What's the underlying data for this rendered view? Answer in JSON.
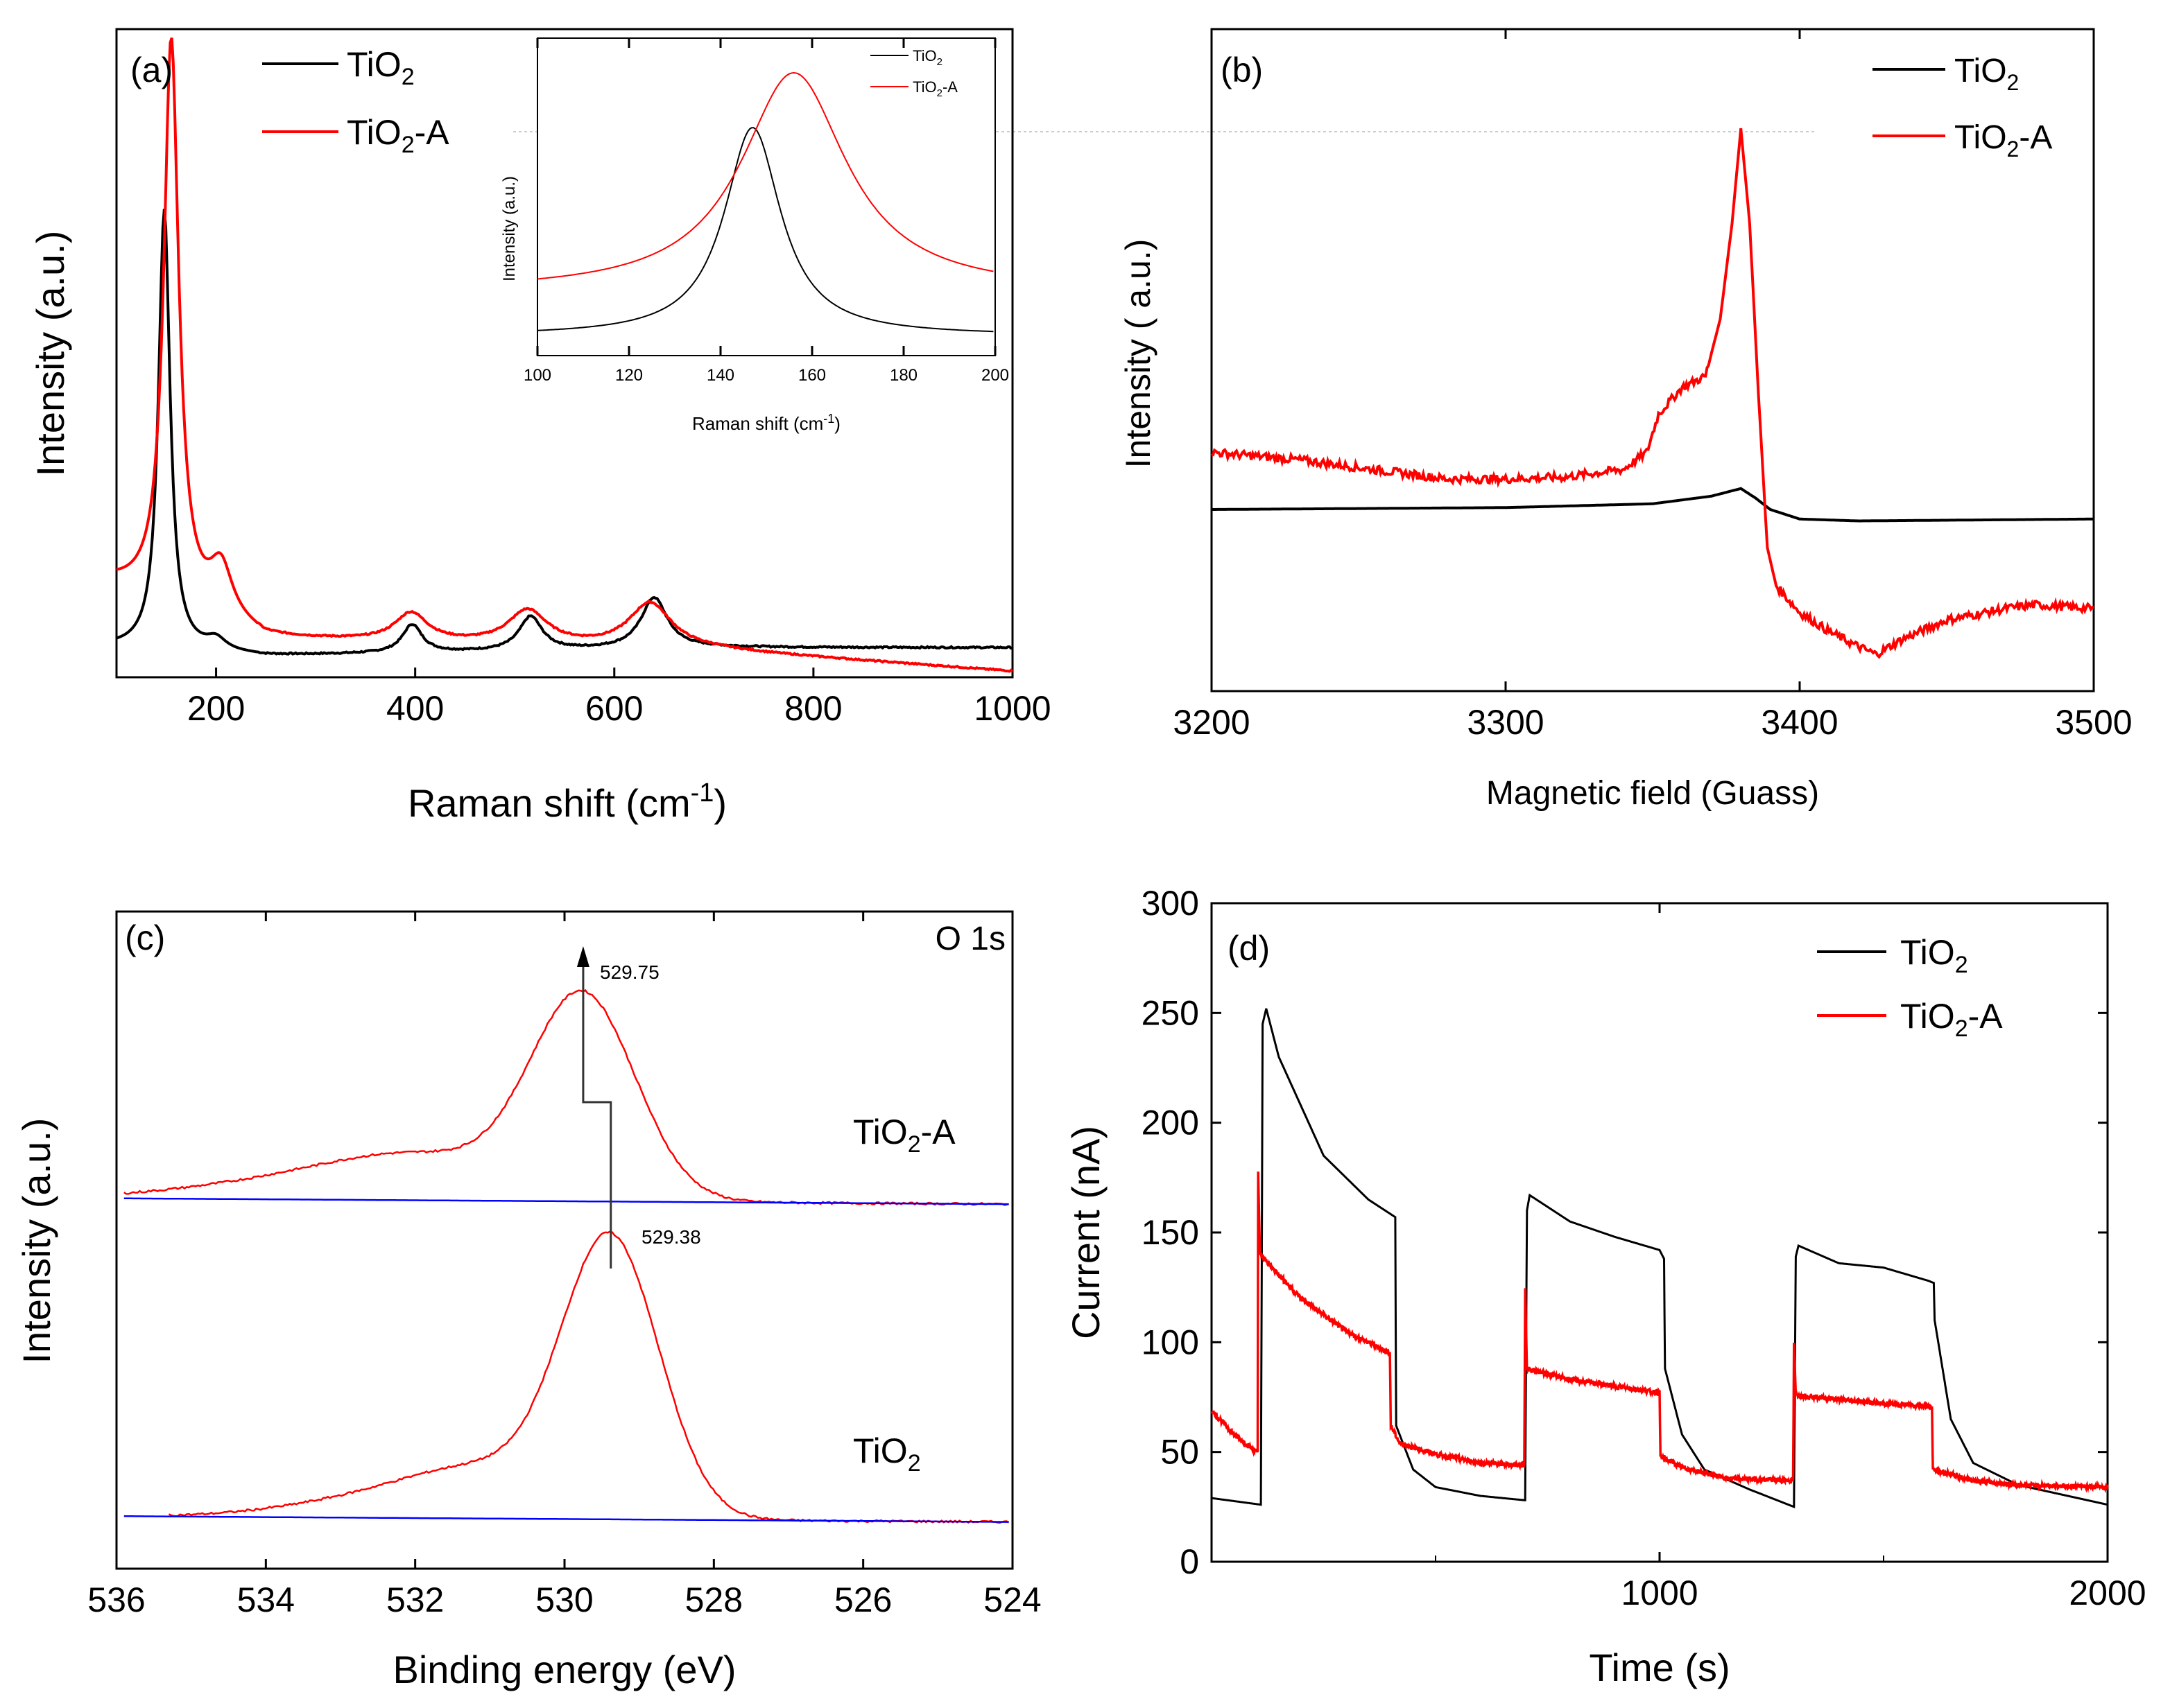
{
  "figure": "Four-panel characterization of TiO2 and TiO2-A",
  "colors": {
    "tio2": "#000000",
    "tio2a": "#ff0000",
    "baseline": "#0000ff",
    "axis": "#000000"
  },
  "chart_data": [
    {
      "panel": "(a)",
      "type": "line",
      "xlabel_main": "Raman shift (cm",
      "xlabel_sup": "-1",
      "xlabel_end": ")",
      "ylabel": "Intensity (a.u.)",
      "xlim": [
        100,
        1000
      ],
      "ylim": [
        0,
        100
      ],
      "xticks": [
        200,
        400,
        600,
        800,
        1000
      ],
      "xtick_labels": [
        "200",
        "400",
        "600",
        "800",
        "1000"
      ],
      "legend": [
        {
          "base": "TiO",
          "sub": "2",
          "tail": ""
        },
        {
          "base": "TiO",
          "sub": "2",
          "tail": "-A"
        }
      ],
      "series": [
        {
          "name": "TiO2",
          "color": "#000000",
          "peaks": [
            [
              148,
              78,
              7
            ],
            [
              200,
              2,
              12
            ],
            [
              397,
              5,
              12
            ],
            [
              516,
              6,
              14
            ],
            [
              640,
              9,
              16
            ]
          ],
          "base": [
            [
              100,
              5
            ],
            [
              250,
              3.5
            ],
            [
              700,
              5
            ],
            [
              1000,
              5
            ]
          ]
        },
        {
          "name": "TiO2-A",
          "color": "#ff0000",
          "peaks": [
            [
              155,
              100,
              9
            ],
            [
              205,
              9,
              14
            ],
            [
              396,
              5,
              20
            ],
            [
              513,
              6,
              24
            ],
            [
              636,
              8,
              26
            ]
          ],
          "base": [
            [
              100,
              16
            ],
            [
              250,
              6.5
            ],
            [
              700,
              4.5
            ],
            [
              1000,
              0.8
            ]
          ]
        }
      ],
      "inset": {
        "xlabel_main": "Raman shift (cm",
        "xlabel_sup": "-1",
        "xlabel_end": ")",
        "ylabel": "Intensity (a.u.)",
        "xlim": [
          100,
          200
        ],
        "xticks": [
          100,
          120,
          140,
          160,
          180,
          200
        ],
        "xtick_labels": [
          "100",
          "120",
          "140",
          "160",
          "180",
          "200"
        ],
        "legend": [
          {
            "base": "TiO",
            "sub": "2",
            "tail": ""
          },
          {
            "base": "TiO",
            "sub": "2",
            "tail": "-A"
          }
        ],
        "series": [
          {
            "name": "TiO2",
            "color": "#000000",
            "center": 147,
            "hwhm": 7.5,
            "peak": 100,
            "floor": 5
          },
          {
            "name": "TiO2-A",
            "color": "#ff0000",
            "center": 156,
            "hwhm": 14,
            "peak": 125,
            "floor": 25
          }
        ]
      }
    },
    {
      "panel": "(b)",
      "type": "line",
      "xlabel": "Magnetic field (Guass)",
      "ylabel": "Intensity ( a.u.)",
      "xlim": [
        3200,
        3500
      ],
      "ylim": [
        -50,
        110
      ],
      "xticks": [
        3200,
        3300,
        3400,
        3500
      ],
      "xtick_labels": [
        "3200",
        "3300",
        "3400",
        "3500"
      ],
      "legend": [
        {
          "base": "TiO",
          "sub": "2",
          "tail": ""
        },
        {
          "base": "TiO",
          "sub": "2",
          "tail": "-A"
        }
      ],
      "series": [
        {
          "name": "TiO2",
          "color": "#000000",
          "points": [
            [
              3200,
              0
            ],
            [
              3300,
              0.5
            ],
            [
              3350,
              1.5
            ],
            [
              3370,
              3.5
            ],
            [
              3380,
              5.5
            ],
            [
              3385,
              3
            ],
            [
              3390,
              0
            ],
            [
              3400,
              -2.5
            ],
            [
              3420,
              -3
            ],
            [
              3500,
              -2.5
            ]
          ]
        },
        {
          "name": "TiO2-A",
          "color": "#ff0000",
          "points": [
            [
              3200,
              15
            ],
            [
              3230,
              13
            ],
            [
              3260,
              10
            ],
            [
              3280,
              8
            ],
            [
              3300,
              8
            ],
            [
              3320,
              8.5
            ],
            [
              3340,
              10.5
            ],
            [
              3348,
              15
            ],
            [
              3352,
              25
            ],
            [
              3360,
              32
            ],
            [
              3368,
              35
            ],
            [
              3373,
              50
            ],
            [
              3377,
              75
            ],
            [
              3380,
              100
            ],
            [
              3383,
              75
            ],
            [
              3386,
              30
            ],
            [
              3389,
              -10
            ],
            [
              3392,
              -20
            ],
            [
              3400,
              -27
            ],
            [
              3410,
              -32
            ],
            [
              3420,
              -36
            ],
            [
              3426,
              -38
            ],
            [
              3435,
              -34
            ],
            [
              3450,
              -29
            ],
            [
              3470,
              -26
            ],
            [
              3480,
              -25
            ],
            [
              3500,
              -26
            ]
          ]
        }
      ]
    },
    {
      "panel": "(c)",
      "type": "line",
      "xlabel": "Binding energy (eV)",
      "ylabel": "Intensity (a.u.)",
      "title": "O 1s",
      "xlim": [
        536,
        524
      ],
      "ylim": [
        0,
        100
      ],
      "xticks": [
        536,
        534,
        532,
        530,
        528,
        526,
        524
      ],
      "xtick_labels": [
        "536",
        "534",
        "532",
        "530",
        "528",
        "526",
        "524"
      ],
      "labels": [
        {
          "base": "TiO",
          "sub": "2",
          "tail": "-A"
        },
        {
          "base": "TiO",
          "sub": "2",
          "tail": ""
        }
      ],
      "annotations": [
        "529.75",
        "529.38"
      ],
      "peak_positions": [
        529.75,
        529.38
      ],
      "series": [
        {
          "name": "TiO2-A",
          "color": "#ff0000",
          "offset": 54.3,
          "center": 529.75,
          "height": 33,
          "sigma": 0.7,
          "shoulder": [
            531.8,
            6,
            1.2
          ],
          "tail": [
            533.5,
            3,
            1.5
          ]
        },
        {
          "name": "TiO2-A baseline",
          "color": "#0000ff",
          "offset": 54.3
        },
        {
          "name": "TiO2",
          "color": "#ff0000",
          "offset": 2.2,
          "center": 529.38,
          "height": 45,
          "sigma": 0.65,
          "shoulder": [
            531.0,
            7,
            1.0
          ],
          "tail": [
            532.5,
            3,
            1.2
          ]
        },
        {
          "name": "TiO2 baseline",
          "color": "#0000ff",
          "offset": 2.2
        }
      ]
    },
    {
      "panel": "(d)",
      "type": "line",
      "xlabel": "Time (s)",
      "ylabel": "Current (nA)",
      "xlim": [
        0,
        2000
      ],
      "ylim": [
        0,
        300
      ],
      "yticks": [
        0,
        50,
        100,
        150,
        200,
        250,
        300
      ],
      "ytick_labels": [
        "0",
        "50",
        "100",
        "150",
        "200",
        "250",
        "300"
      ],
      "xticks": [
        1000,
        2000
      ],
      "xtick_labels": [
        "1000",
        "2000"
      ],
      "legend": [
        {
          "base": "TiO",
          "sub": "2",
          "tail": ""
        },
        {
          "base": "TiO",
          "sub": "2",
          "tail": "-A"
        }
      ],
      "series": [
        {
          "name": "TiO2",
          "color": "#000000",
          "points": [
            [
              0,
              29
            ],
            [
              110,
              26
            ],
            [
              114,
              245
            ],
            [
              122,
              252
            ],
            [
              150,
              230
            ],
            [
              250,
              185
            ],
            [
              350,
              165
            ],
            [
              410,
              157
            ],
            [
              412,
              62
            ],
            [
              450,
              42
            ],
            [
              500,
              34
            ],
            [
              600,
              30
            ],
            [
              700,
              28
            ],
            [
              704,
              160
            ],
            [
              710,
              167
            ],
            [
              800,
              155
            ],
            [
              900,
              148
            ],
            [
              1000,
              142
            ],
            [
              1010,
              138
            ],
            [
              1012,
              88
            ],
            [
              1050,
              58
            ],
            [
              1100,
              42
            ],
            [
              1200,
              33
            ],
            [
              1300,
              25
            ],
            [
              1304,
              139
            ],
            [
              1310,
              144
            ],
            [
              1400,
              136
            ],
            [
              1500,
              134
            ],
            [
              1600,
              128
            ],
            [
              1612,
              127
            ],
            [
              1614,
              110
            ],
            [
              1650,
              65
            ],
            [
              1700,
              45
            ],
            [
              1800,
              35
            ],
            [
              2000,
              26
            ]
          ]
        },
        {
          "name": "TiO2-A",
          "color": "#ff0000",
          "points": [
            [
              0,
              69
            ],
            [
              50,
              58
            ],
            [
              100,
              50
            ],
            [
              103,
              50
            ],
            [
              104,
              178
            ],
            [
              108,
              140
            ],
            [
              200,
              120
            ],
            [
              300,
              105
            ],
            [
              398,
              95
            ],
            [
              400,
              62
            ],
            [
              420,
              54
            ],
            [
              500,
              49
            ],
            [
              600,
              45
            ],
            [
              698,
              44
            ],
            [
              700,
              125
            ],
            [
              704,
              88
            ],
            [
              800,
              83
            ],
            [
              900,
              80
            ],
            [
              1000,
              77
            ],
            [
              1002,
              48
            ],
            [
              1050,
              43
            ],
            [
              1150,
              38
            ],
            [
              1298,
              37
            ],
            [
              1300,
              99
            ],
            [
              1304,
              76
            ],
            [
              1400,
              74
            ],
            [
              1500,
              72
            ],
            [
              1600,
              71
            ],
            [
              1608,
              70
            ],
            [
              1610,
              42
            ],
            [
              1700,
              37
            ],
            [
              1800,
              35
            ],
            [
              2000,
              34
            ]
          ]
        }
      ]
    }
  ]
}
